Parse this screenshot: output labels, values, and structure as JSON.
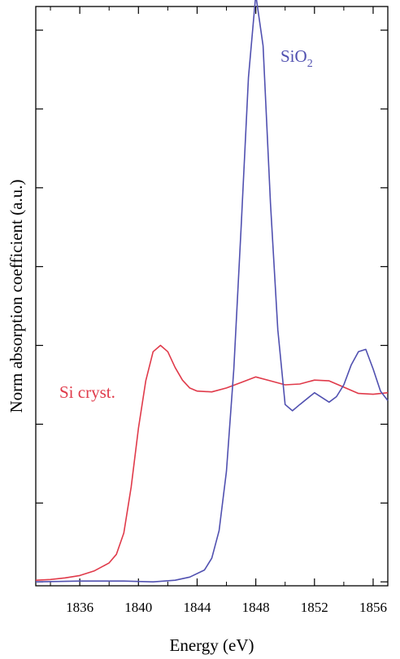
{
  "chart_data": {
    "type": "line",
    "xlabel": "Energy  (eV)",
    "ylabel": "Norm absorption coefficient (a.u.)",
    "xlim": [
      1833,
      1857
    ],
    "ylim": [
      -0.05,
      7.3
    ],
    "x_ticks": [
      "1836",
      "1840",
      "1844",
      "1848",
      "1852",
      "1856"
    ],
    "y_ticks_count": 7,
    "grid": false,
    "series": [
      {
        "name": "Si cryst.",
        "color": "#e03a4a",
        "points": [
          [
            1833.0,
            0.02
          ],
          [
            1834.0,
            0.03
          ],
          [
            1835.0,
            0.05
          ],
          [
            1836.0,
            0.08
          ],
          [
            1837.0,
            0.14
          ],
          [
            1838.0,
            0.24
          ],
          [
            1838.5,
            0.35
          ],
          [
            1839.0,
            0.62
          ],
          [
            1839.5,
            1.2
          ],
          [
            1840.0,
            1.95
          ],
          [
            1840.5,
            2.55
          ],
          [
            1841.0,
            2.92
          ],
          [
            1841.5,
            3.0
          ],
          [
            1842.0,
            2.92
          ],
          [
            1842.5,
            2.72
          ],
          [
            1843.0,
            2.56
          ],
          [
            1843.5,
            2.46
          ],
          [
            1844.0,
            2.42
          ],
          [
            1845.0,
            2.41
          ],
          [
            1846.0,
            2.46
          ],
          [
            1847.0,
            2.53
          ],
          [
            1848.0,
            2.6
          ],
          [
            1849.0,
            2.55
          ],
          [
            1850.0,
            2.5
          ],
          [
            1851.0,
            2.51
          ],
          [
            1852.0,
            2.56
          ],
          [
            1853.0,
            2.55
          ],
          [
            1854.0,
            2.47
          ],
          [
            1855.0,
            2.39
          ],
          [
            1856.0,
            2.38
          ],
          [
            1857.0,
            2.4
          ]
        ]
      },
      {
        "name": "SiO2",
        "label_main": "SiO",
        "label_sub": "2",
        "color": "#5050b0",
        "points": [
          [
            1833.0,
            0.0
          ],
          [
            1836.0,
            0.01
          ],
          [
            1839.0,
            0.01
          ],
          [
            1841.0,
            0.0
          ],
          [
            1842.5,
            0.02
          ],
          [
            1843.5,
            0.06
          ],
          [
            1844.5,
            0.15
          ],
          [
            1845.0,
            0.3
          ],
          [
            1845.5,
            0.65
          ],
          [
            1846.0,
            1.4
          ],
          [
            1846.5,
            2.7
          ],
          [
            1847.0,
            4.5
          ],
          [
            1847.5,
            6.4
          ],
          [
            1848.0,
            7.45
          ],
          [
            1848.5,
            6.8
          ],
          [
            1849.0,
            4.8
          ],
          [
            1849.5,
            3.2
          ],
          [
            1850.0,
            2.25
          ],
          [
            1850.5,
            2.17
          ],
          [
            1851.0,
            2.25
          ],
          [
            1852.0,
            2.4
          ],
          [
            1853.0,
            2.28
          ],
          [
            1853.5,
            2.35
          ],
          [
            1854.0,
            2.5
          ],
          [
            1854.5,
            2.75
          ],
          [
            1855.0,
            2.92
          ],
          [
            1855.5,
            2.95
          ],
          [
            1856.0,
            2.7
          ],
          [
            1856.5,
            2.42
          ],
          [
            1857.0,
            2.3
          ]
        ]
      }
    ]
  }
}
